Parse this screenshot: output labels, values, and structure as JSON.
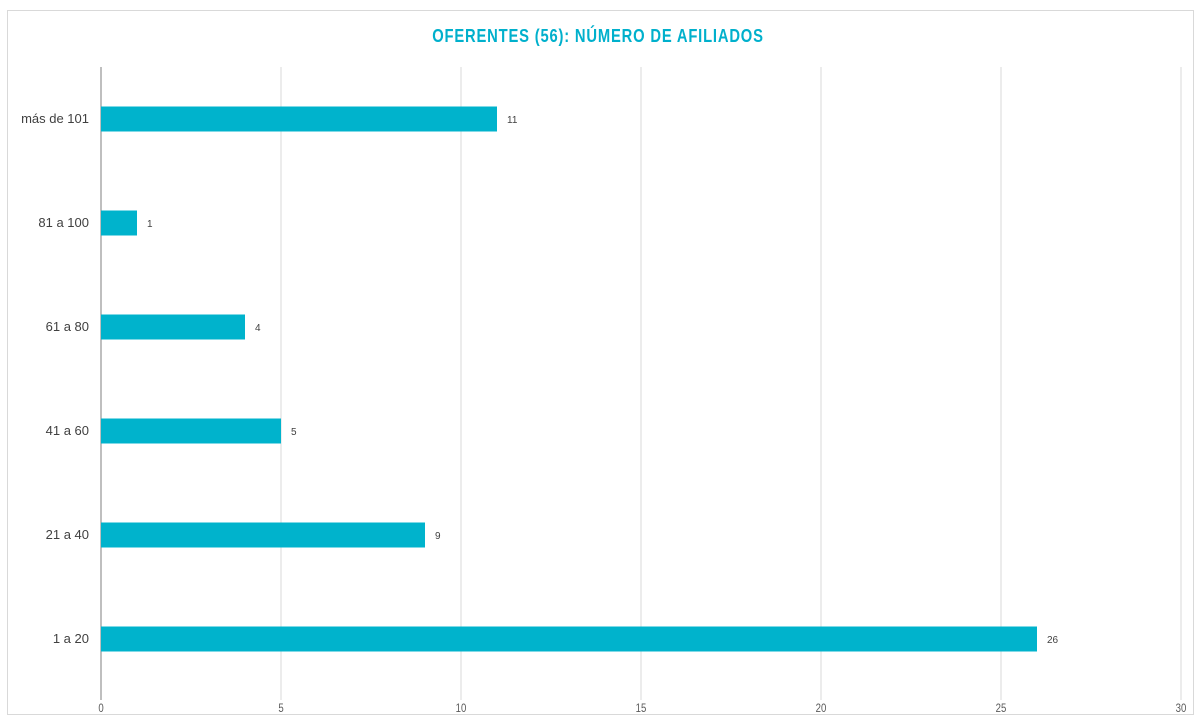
{
  "chart_data": {
    "type": "bar",
    "orientation": "horizontal",
    "title": "OFERENTES (56): NÚMERO DE AFILIADOS",
    "categories": [
      "más de 101",
      "81 a 100",
      "61 a 80",
      "41 a 60",
      "21 a 40",
      "1 a 20"
    ],
    "values": [
      11,
      1,
      4,
      5,
      9,
      26
    ],
    "data_labels": [
      "11",
      "1",
      "4",
      "5",
      "9",
      "26"
    ],
    "x_ticks": [
      0,
      5,
      10,
      15,
      20,
      25,
      30
    ],
    "x_tick_labels": [
      "0",
      "5",
      "10",
      "15",
      "20",
      "25",
      "30"
    ],
    "xlim": [
      0,
      30
    ],
    "xlabel": "",
    "ylabel": "",
    "grid": true,
    "legend": "none",
    "colors": {
      "bar": "#00b3cc",
      "title": "#00b0cc",
      "grid": "#d9d9d9",
      "axis": "#bfbfbf",
      "tick_text": "#595959",
      "label_text": "#404040"
    }
  }
}
